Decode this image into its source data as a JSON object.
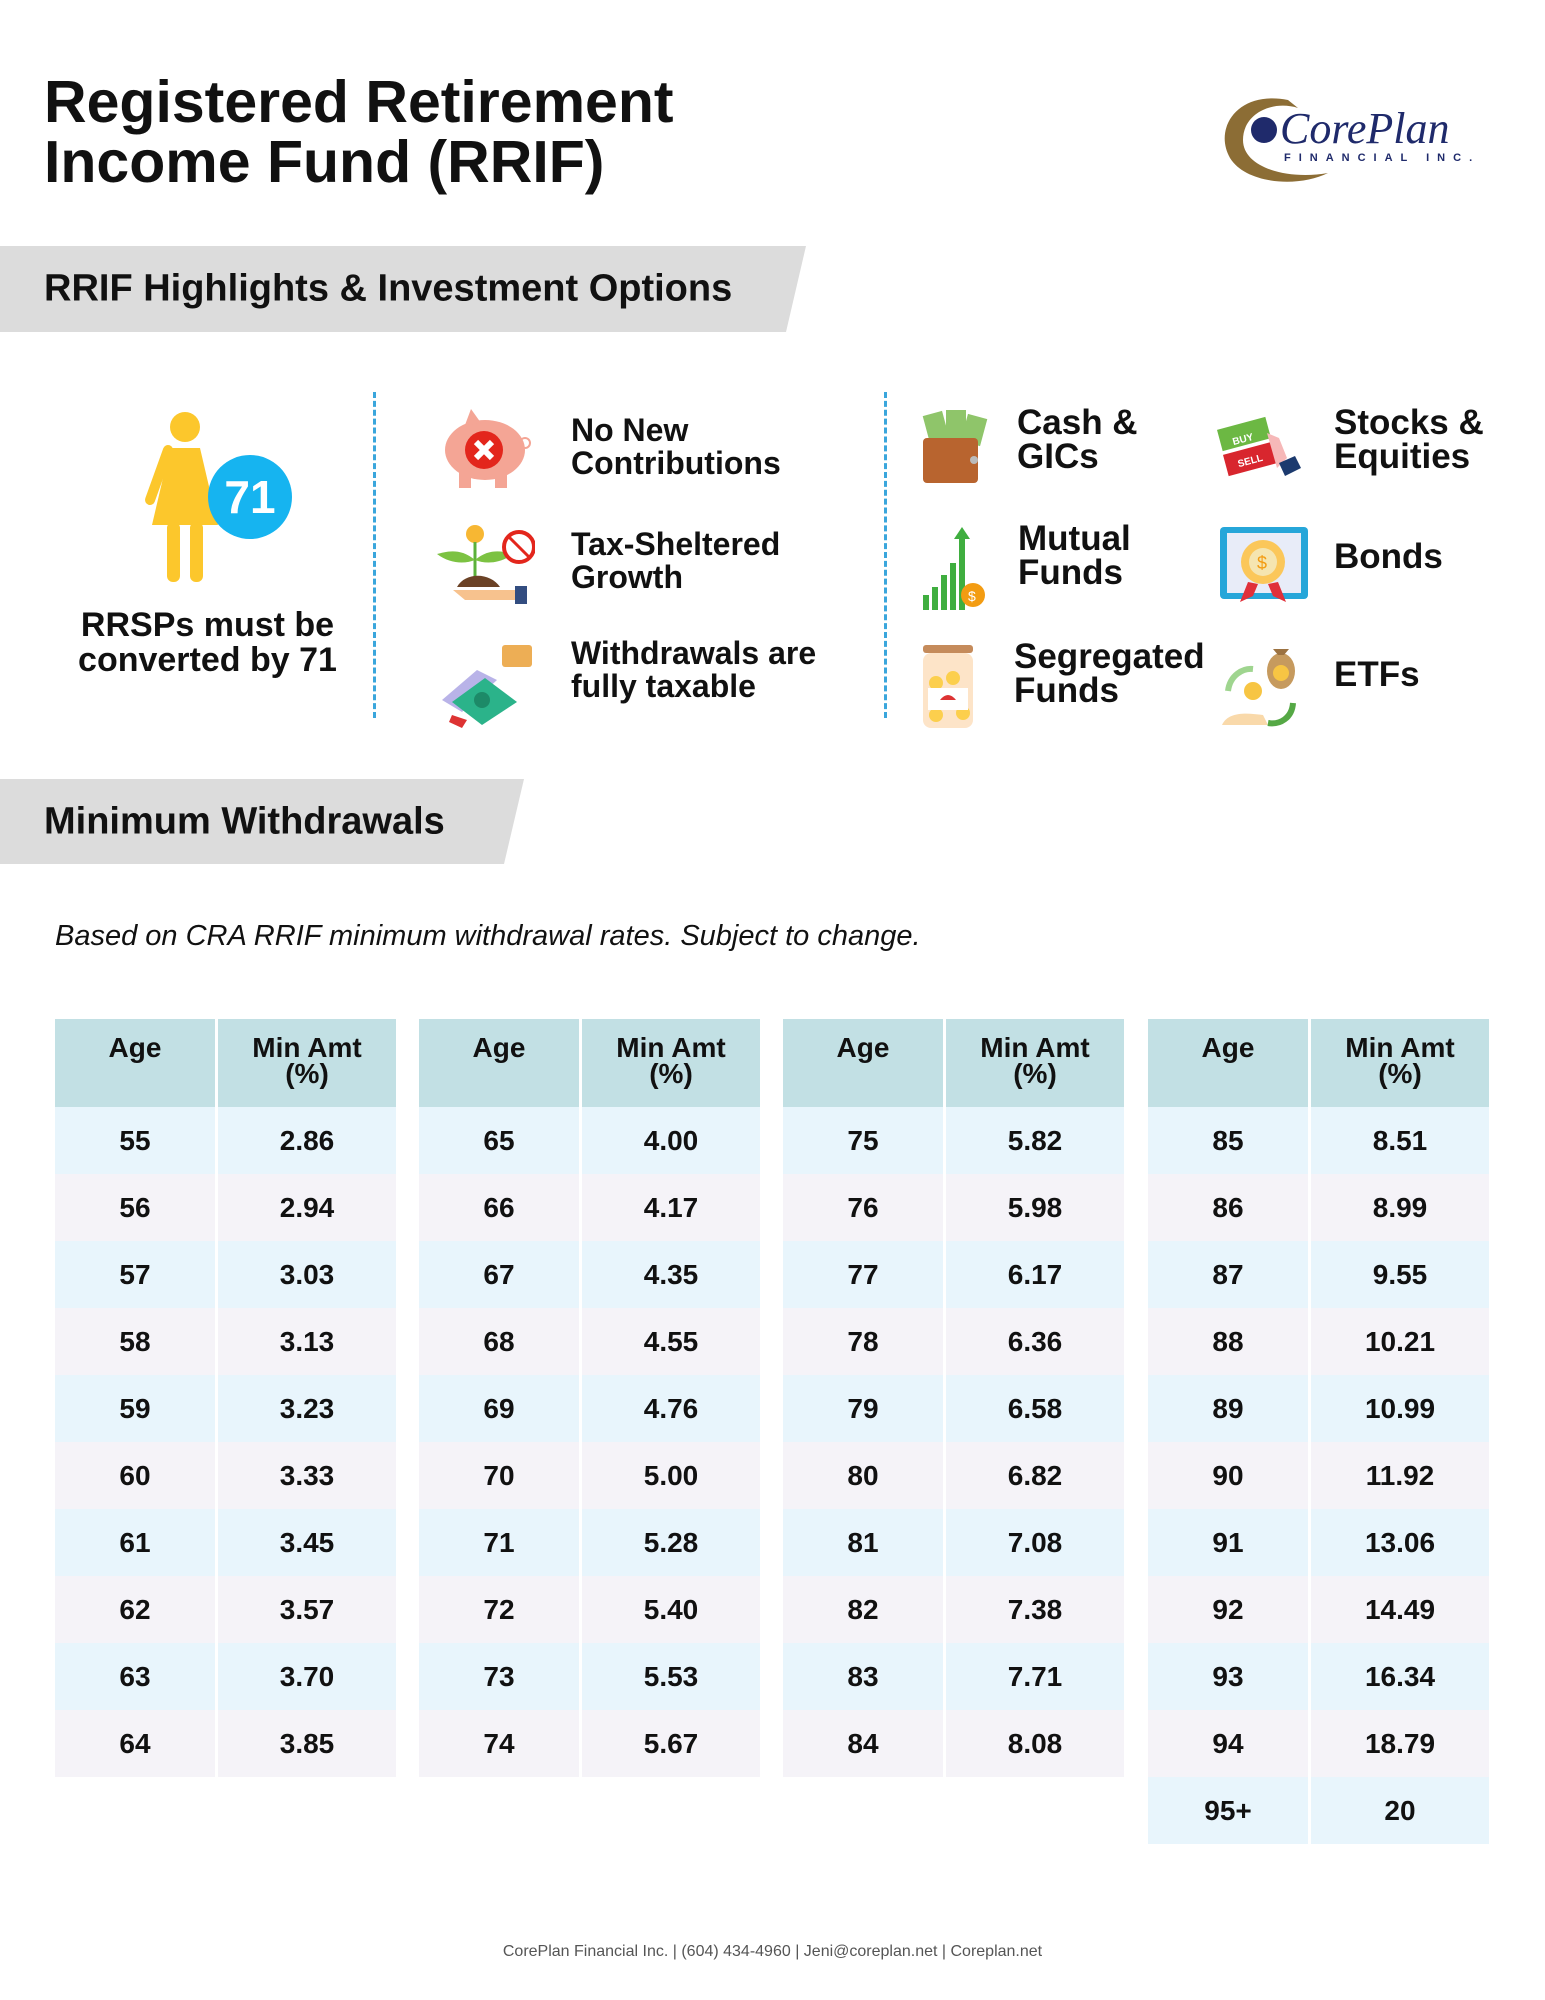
{
  "title_line1": "Registered Retirement",
  "title_line2": "Income Fund (RRIF)",
  "logo": {
    "name": "CorePlan",
    "sub": "FINANCIAL INC.",
    "colors": {
      "navy": "#1f2a6b",
      "gold": "#8c6d35"
    }
  },
  "highlights_banner": "RRIF Highlights & Investment Options",
  "age_badge": "71",
  "convert_text_line1": "RRSPs must be",
  "convert_text_line2": "converted by 71",
  "features": [
    {
      "icon": "piggy-bank-no-icon",
      "line1": "No New",
      "line2": "Contributions"
    },
    {
      "icon": "plant-no-tax-icon",
      "line1": "Tax-Sheltered",
      "line2": "Growth"
    },
    {
      "icon": "money-tax-tag-icon",
      "line1": "Withdrawals are",
      "line2": "fully taxable"
    }
  ],
  "investments": [
    {
      "icon": "wallet-cash-icon",
      "line1": "Cash &",
      "line2": "GICs"
    },
    {
      "icon": "buy-sell-icon",
      "line1": "Stocks &",
      "line2": "Equities"
    },
    {
      "icon": "growth-chart-coin-icon",
      "line1": "Mutual",
      "line2": "Funds"
    },
    {
      "icon": "bond-certificate-icon",
      "line1": "Bonds",
      "line2": ""
    },
    {
      "icon": "coin-jar-umbrella-icon",
      "line1": "Segregated",
      "line2": "Funds"
    },
    {
      "icon": "money-exchange-icon",
      "line1": "ETFs",
      "line2": ""
    }
  ],
  "withdrawals_banner": "Minimum Withdrawals",
  "note": "Based on CRA RRIF minimum withdrawal rates. Subject to change.",
  "table_headers": {
    "age": "Age",
    "min_amt_line1": "Min Amt",
    "min_amt_line2": "(%)"
  },
  "tables": [
    [
      [
        "55",
        "2.86"
      ],
      [
        "56",
        "2.94"
      ],
      [
        "57",
        "3.03"
      ],
      [
        "58",
        "3.13"
      ],
      [
        "59",
        "3.23"
      ],
      [
        "60",
        "3.33"
      ],
      [
        "61",
        "3.45"
      ],
      [
        "62",
        "3.57"
      ],
      [
        "63",
        "3.70"
      ],
      [
        "64",
        "3.85"
      ]
    ],
    [
      [
        "65",
        "4.00"
      ],
      [
        "66",
        "4.17"
      ],
      [
        "67",
        "4.35"
      ],
      [
        "68",
        "4.55"
      ],
      [
        "69",
        "4.76"
      ],
      [
        "70",
        "5.00"
      ],
      [
        "71",
        "5.28"
      ],
      [
        "72",
        "5.40"
      ],
      [
        "73",
        "5.53"
      ],
      [
        "74",
        "5.67"
      ]
    ],
    [
      [
        "75",
        "5.82"
      ],
      [
        "76",
        "5.98"
      ],
      [
        "77",
        "6.17"
      ],
      [
        "78",
        "6.36"
      ],
      [
        "79",
        "6.58"
      ],
      [
        "80",
        "6.82"
      ],
      [
        "81",
        "7.08"
      ],
      [
        "82",
        "7.38"
      ],
      [
        "83",
        "7.71"
      ],
      [
        "84",
        "8.08"
      ]
    ],
    [
      [
        "85",
        "8.51"
      ],
      [
        "86",
        "8.99"
      ],
      [
        "87",
        "9.55"
      ],
      [
        "88",
        "10.21"
      ],
      [
        "89",
        "10.99"
      ],
      [
        "90",
        "11.92"
      ],
      [
        "91",
        "13.06"
      ],
      [
        "92",
        "14.49"
      ],
      [
        "93",
        "16.34"
      ],
      [
        "94",
        "18.79"
      ],
      [
        "95+",
        "20"
      ]
    ]
  ],
  "colors": {
    "header": "#c2e0e4",
    "row_odd": "#e8f5fc",
    "row_even": "#f5f3f8",
    "divider": "#3aa6dc",
    "badge": "#16b4f0",
    "person": "#fcc72c"
  },
  "footer": "CorePlan Financial Inc. | (604) 434-4960 | Jeni@coreplan.net | Coreplan.net"
}
